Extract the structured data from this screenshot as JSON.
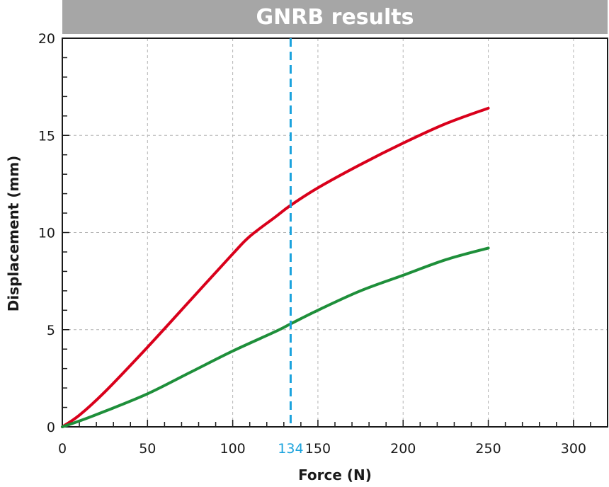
{
  "chart_data": {
    "type": "line",
    "title": "GNRB results",
    "xlabel": "Force (N)",
    "ylabel": "Displacement (mm)",
    "xlim": [
      0,
      320
    ],
    "ylim": [
      0,
      20
    ],
    "x_ticks": [
      0,
      50,
      100,
      150,
      200,
      250,
      300
    ],
    "y_ticks": [
      0,
      5,
      10,
      15,
      20
    ],
    "grid": true,
    "legend": "none",
    "series": [
      {
        "color": "#d9001b",
        "x": [
          0,
          10,
          25,
          50,
          75,
          100,
          110,
          125,
          134,
          150,
          175,
          200,
          225,
          250
        ],
        "y": [
          0,
          0.6,
          1.8,
          4.1,
          6.5,
          8.9,
          9.8,
          10.8,
          11.4,
          12.3,
          13.5,
          14.6,
          15.6,
          16.4
        ]
      },
      {
        "color": "#1e8f3a",
        "x": [
          0,
          10,
          25,
          50,
          75,
          100,
          125,
          134,
          150,
          175,
          200,
          225,
          250
        ],
        "y": [
          0,
          0.3,
          0.8,
          1.7,
          2.8,
          3.9,
          4.9,
          5.3,
          6.0,
          7.0,
          7.8,
          8.6,
          9.2
        ]
      }
    ],
    "reference_line": {
      "x": 134,
      "label": "134",
      "color": "#1ba3dd"
    }
  }
}
